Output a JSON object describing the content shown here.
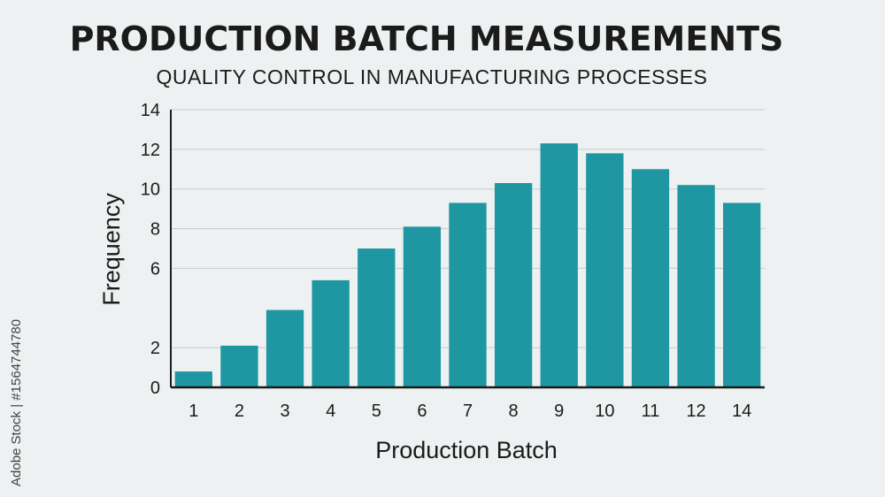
{
  "watermark": "Adobe Stock | #1564744780",
  "colors": {
    "bar": "#1f97a3",
    "grid": "#c5cccc",
    "axis": "#1b1b1b",
    "background": "#eef1f1"
  },
  "chart_data": {
    "type": "bar",
    "title": "PRODUCTION BATCH MEASUREMENTS",
    "subtitle": "QUALITY CONTROL IN MANUFACTURING PROCESSES",
    "xlabel": "Production Batch",
    "ylabel": "Frequency",
    "categories": [
      "1",
      "2",
      "3",
      "4",
      "5",
      "6",
      "7",
      "8",
      "9",
      "10",
      "11",
      "12",
      "14"
    ],
    "values": [
      0.8,
      2.1,
      3.9,
      5.4,
      7.0,
      8.1,
      9.3,
      10.3,
      12.3,
      11.8,
      11.0,
      10.2,
      9.3
    ],
    "yticks": [
      0,
      2,
      6,
      8,
      10,
      12,
      14
    ],
    "ylim": [
      0,
      14
    ],
    "grid": true,
    "legend": "none"
  }
}
